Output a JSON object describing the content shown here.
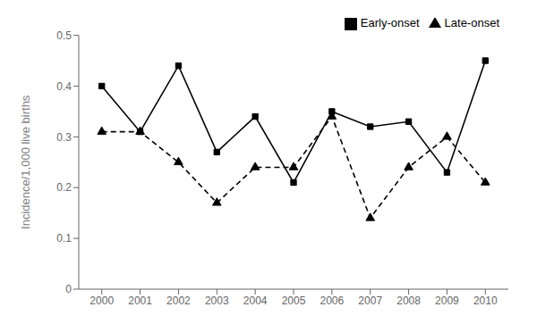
{
  "chart_data": {
    "type": "line",
    "x": [
      2000,
      2001,
      2002,
      2003,
      2004,
      2005,
      2006,
      2007,
      2008,
      2009,
      2010
    ],
    "xlim": [
      1999.4,
      2010.6
    ],
    "xticks": [
      2000,
      2001,
      2002,
      2003,
      2004,
      2005,
      2006,
      2007,
      2008,
      2009,
      2010
    ],
    "ylim": [
      0,
      0.5
    ],
    "yticks": [
      0,
      0.1,
      0.2,
      0.3,
      0.4,
      0.5
    ],
    "ylabel": "Incidence/1,000 live births",
    "series": [
      {
        "name": "Early-onset",
        "color": "#000000",
        "values": [
          0.4,
          0.31,
          0.44,
          0.27,
          0.34,
          0.21,
          0.35,
          0.32,
          0.33,
          0.23,
          0.45
        ],
        "marker": "square",
        "line_style": "solid"
      },
      {
        "name": "Late-onset",
        "color": "#000000",
        "values": [
          0.31,
          0.31,
          0.25,
          0.17,
          0.24,
          0.24,
          0.34,
          0.14,
          0.24,
          0.3,
          0.21
        ],
        "marker": "triangle",
        "line_style": "dashed"
      }
    ],
    "legend": "upper right",
    "grid": false
  }
}
